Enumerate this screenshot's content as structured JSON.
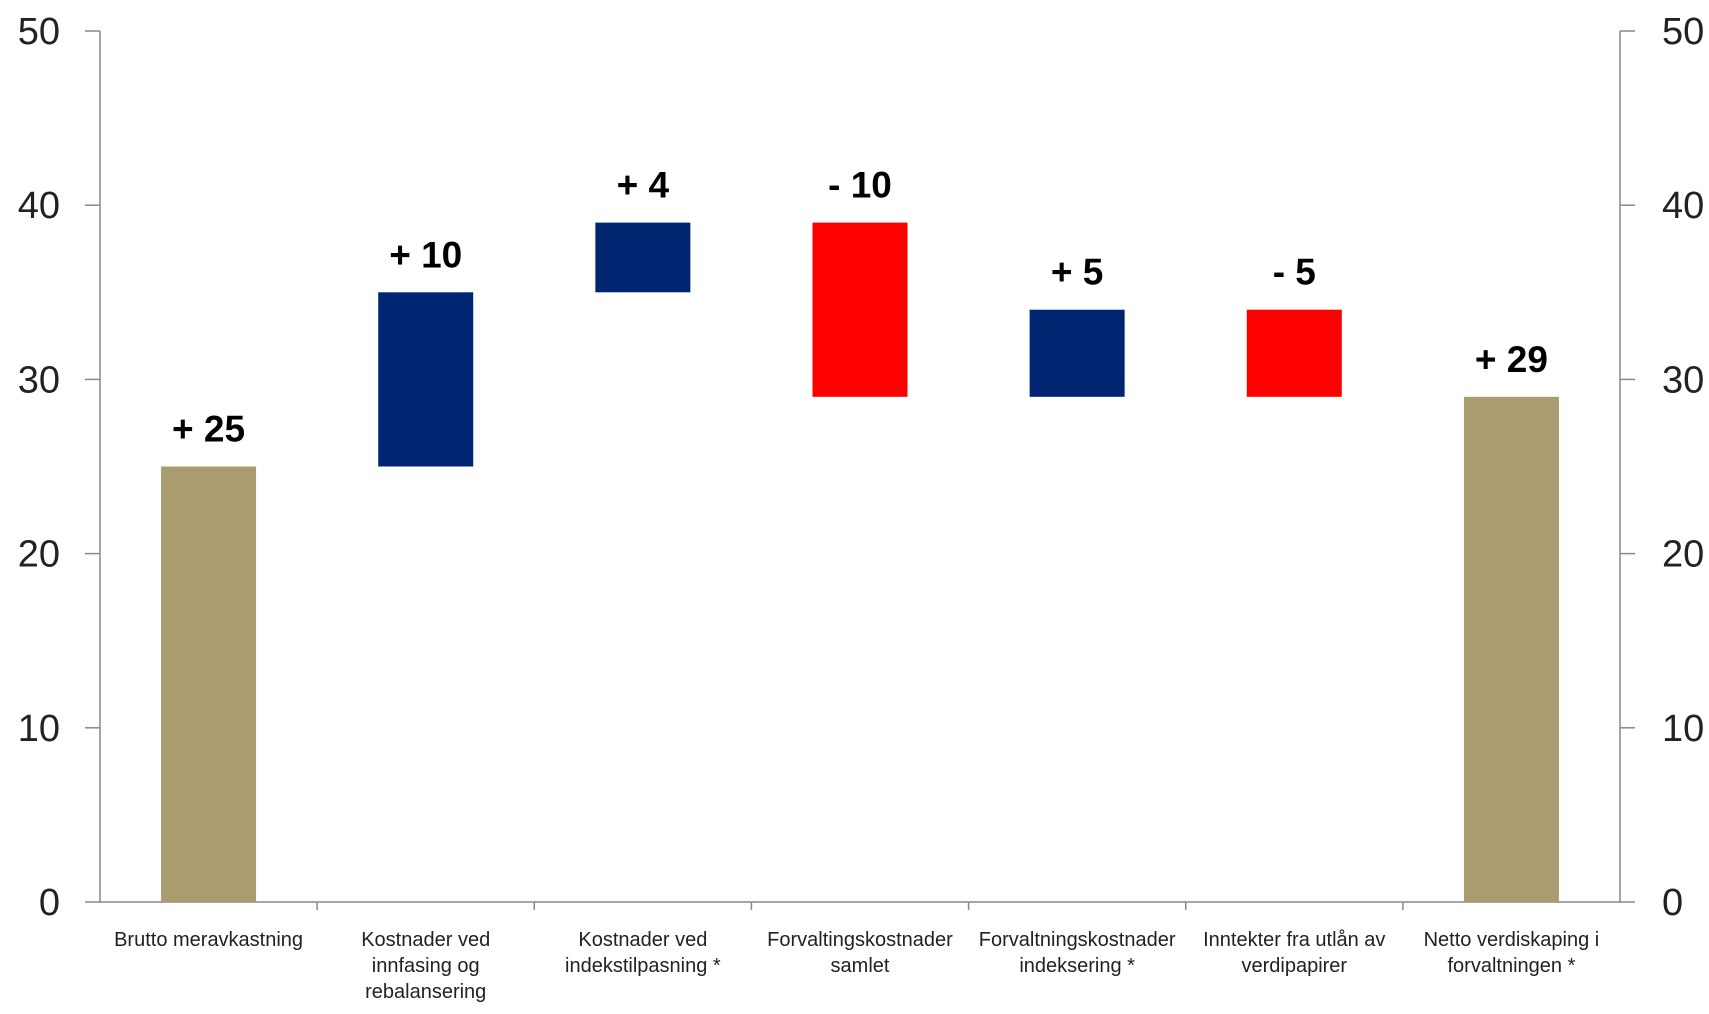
{
  "chart_data": {
    "type": "bar",
    "subtype": "waterfall",
    "title": "",
    "xlabel": "",
    "ylabel": "",
    "ylim": [
      0,
      50
    ],
    "yticks": [
      0,
      10,
      20,
      30,
      40,
      50
    ],
    "secondary_y_axis": true,
    "grid": false,
    "colors": {
      "total": "#AA9C6E",
      "increase": "#002672",
      "decrease": "#FF0000"
    },
    "categories": [
      [
        "Brutto meravkastning"
      ],
      [
        "Kostnader ved",
        "innfasing og",
        "rebalansering"
      ],
      [
        "Kostnader ved",
        "indekstilpasning *"
      ],
      [
        "Forvaltingskostnader",
        "samlet"
      ],
      [
        "Forvaltningskostnader",
        "indeksering *"
      ],
      [
        "Inntekter fra utlån av",
        "verdipapirer"
      ],
      [
        "Netto verdiskaping i",
        "forvaltningen *"
      ]
    ],
    "bars": [
      {
        "kind": "total",
        "start": 0,
        "end": 25,
        "label": "+ 25"
      },
      {
        "kind": "increase",
        "start": 25,
        "end": 35,
        "label": "+ 10"
      },
      {
        "kind": "increase",
        "start": 35,
        "end": 39,
        "label": "+ 4"
      },
      {
        "kind": "decrease",
        "start": 39,
        "end": 29,
        "label": "- 10"
      },
      {
        "kind": "increase",
        "start": 29,
        "end": 34,
        "label": "+ 5"
      },
      {
        "kind": "decrease",
        "start": 34,
        "end": 29,
        "label": "- 5"
      },
      {
        "kind": "total",
        "start": 0,
        "end": 29,
        "label": "+ 29"
      }
    ]
  }
}
